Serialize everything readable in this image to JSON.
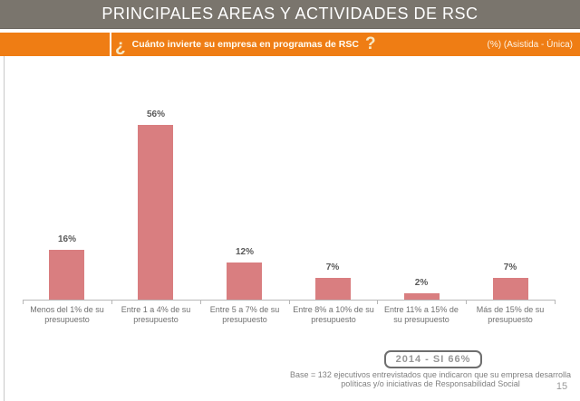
{
  "header": {
    "title": "PRINCIPALES AREAS Y ACTIVIDADES DE RSC",
    "question_open": "¿",
    "question": "Cuánto invierte su empresa en programas de RSC",
    "question_close": "?",
    "note": "(%) (Asistida - Única)"
  },
  "chart_data": {
    "type": "bar",
    "categories": [
      "Menos del 1% de su presupuesto",
      "Entre 1 a 4% de su presupuesto",
      "Entre 5 a 7% de su presupuesto",
      "Entre 8% a 10% de su presupuesto",
      "Entre 11% a 15% de su presupuesto",
      "Más de 15% de su presupuesto"
    ],
    "values": [
      16,
      56,
      12,
      7,
      2,
      7
    ],
    "value_labels": [
      "16%",
      "56%",
      "12%",
      "7%",
      "2%",
      "7%"
    ],
    "title": "",
    "xlabel": "",
    "ylabel": "",
    "ylim": [
      0,
      60
    ],
    "grid": false,
    "legend": false,
    "bar_color": "#d97e80",
    "axis_color": "#b7b7b7"
  },
  "footer": {
    "year_badge": "2014 - SI 66%",
    "base_note_line1": "Base = 132 ejecutivos entrevistados que indicaron que su empresa desarrolla",
    "base_note_line2": "políticas y/o iniciativas de Responsabilidad Social",
    "page_number": "15"
  },
  "colors": {
    "header_gray": "#7a756d",
    "accent_orange": "#ef7d14",
    "bar_salmon": "#d97e80",
    "label_dark": "#595959",
    "label_gray": "#7f7f7f"
  }
}
